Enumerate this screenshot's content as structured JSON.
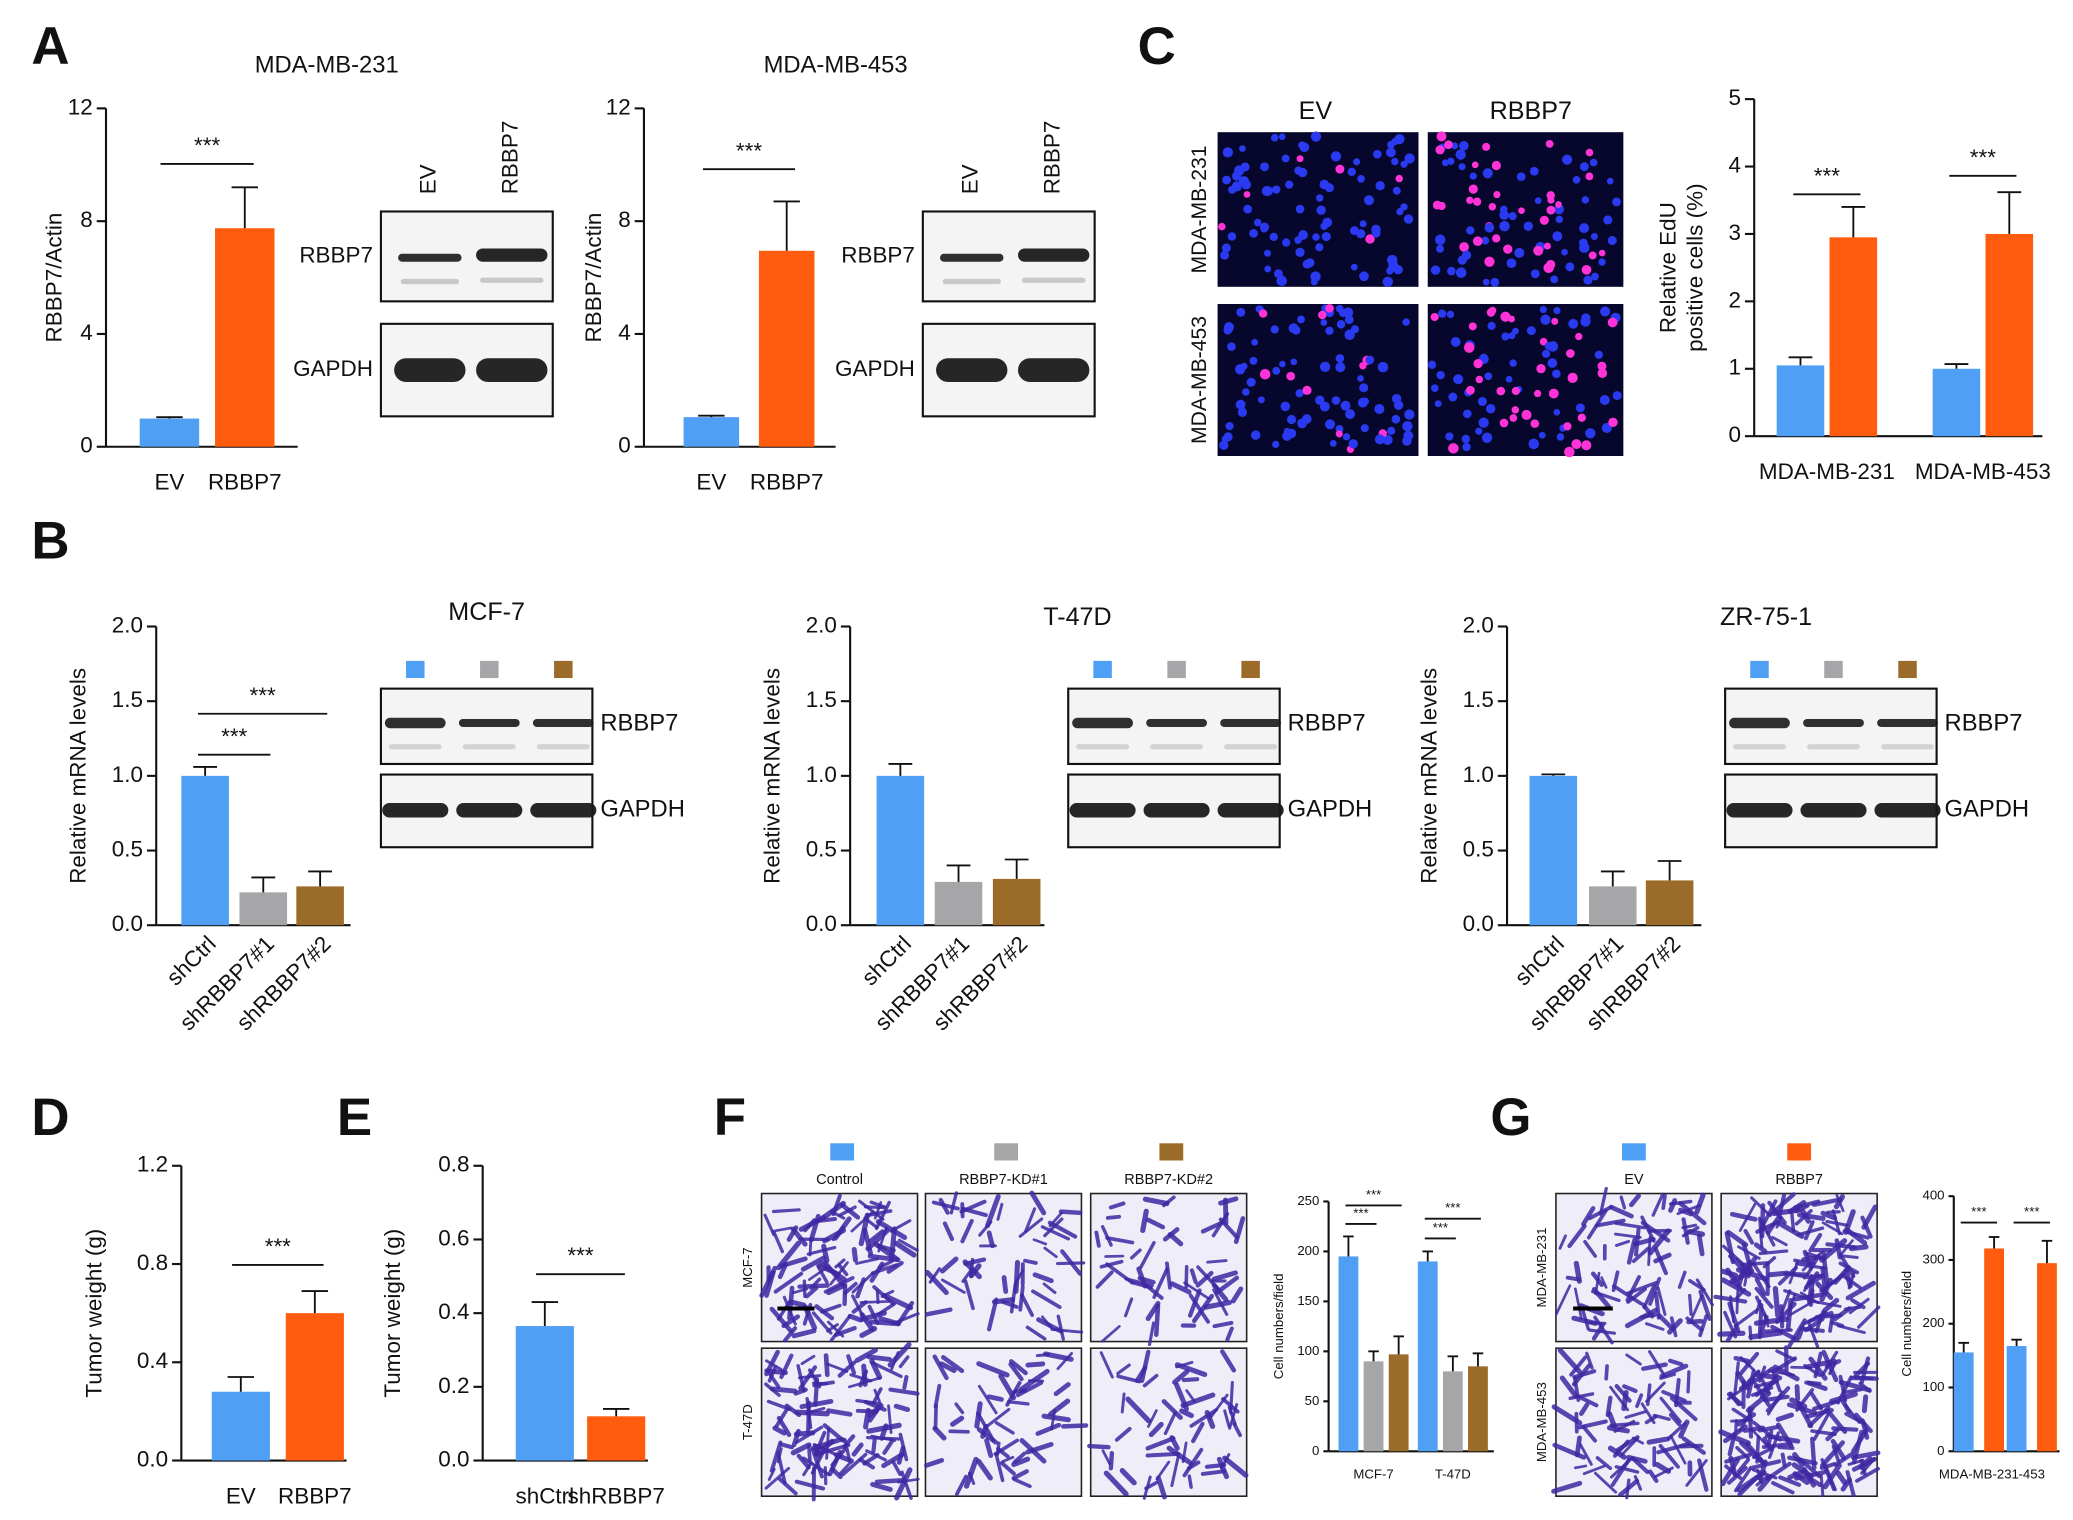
{
  "panel_labels": [
    "A",
    "B",
    "C",
    "D",
    "E",
    "F",
    "G"
  ],
  "blots": [
    {
      "lanes": [
        "EV",
        "RBBP7"
      ],
      "proteins": [
        "RBBP7",
        "GAPDH"
      ]
    },
    {
      "lanes": [
        "EV",
        "RBBP7"
      ],
      "proteins": [
        "RBBP7",
        "GAPDH"
      ]
    },
    {
      "proteins": [
        "RBBP7",
        "GAPDH"
      ]
    },
    {
      "proteins": [
        "RBBP7",
        "GAPDH"
      ]
    },
    {
      "proteins": [
        "RBBP7",
        "GAPDH"
      ]
    }
  ],
  "micrographs": [
    {
      "rows": [
        "MDA-MB-231",
        "MDA-MB-453"
      ]
    },
    {
      "rows": [
        "MCF-7",
        "T-47D"
      ]
    },
    {
      "rows": [
        "MDA-MB-231",
        "MDA-MB-453"
      ]
    }
  ],
  "chart_data": [
    {
      "type": "bar",
      "title": "MDA-MB-231",
      "y_label": "RBBP7/Actin",
      "categories": [
        "EV",
        "RBBP7"
      ],
      "values": [
        1,
        7.75
      ],
      "errors": [
        0.05,
        1.45
      ],
      "colors": [
        "#4f9ff5",
        "#ff5c0f"
      ],
      "ylim": [
        0,
        12
      ],
      "yticks": [
        0,
        4,
        8,
        12
      ],
      "significance": [
        {
          "text": "***",
          "from": "EV",
          "to": "RBBP7"
        }
      ]
    },
    {
      "type": "bar",
      "title": "MDA-MB-453",
      "y_label": "RBBP7/Actin",
      "categories": [
        "EV",
        "RBBP7"
      ],
      "values": [
        1.05,
        6.95
      ],
      "errors": [
        0.05,
        1.75
      ],
      "colors": [
        "#4f9ff5",
        "#ff5c0f"
      ],
      "ylim": [
        0,
        12
      ],
      "yticks": [
        0,
        4,
        8,
        12
      ],
      "significance": [
        {
          "text": "***",
          "from": "EV",
          "to": "RBBP7"
        }
      ]
    },
    {
      "type": "bar",
      "y_label": [
        "Relative EdU",
        "positive cells (%)"
      ],
      "categories": [
        "MDA-MB-231",
        "MDA-MB-453"
      ],
      "series": [
        {
          "name": "EV",
          "color": "#4f9ff5",
          "values": [
            1.05,
            1.0
          ],
          "errors": [
            0.12,
            0.07
          ]
        },
        {
          "name": "RBBP7",
          "color": "#ff5c0f",
          "values": [
            2.95,
            3.0
          ],
          "errors": [
            0.45,
            0.62
          ]
        }
      ],
      "ylim": [
        0,
        5
      ],
      "yticks": [
        0,
        1,
        2,
        3,
        4,
        5
      ],
      "significance": [
        {
          "text": "***",
          "category": "MDA-MB-231",
          "from": "EV",
          "to": "RBBP7"
        },
        {
          "text": "***",
          "category": "MDA-MB-453",
          "from": "EV",
          "to": "RBBP7"
        }
      ]
    },
    {
      "type": "bar",
      "title": "MCF-7",
      "y_label": "Relative mRNA levels",
      "categories": [
        "shCtrl",
        "shRBBP7#1",
        "shRBBP7#2"
      ],
      "values": [
        1.0,
        0.22,
        0.26
      ],
      "errors": [
        0.06,
        0.1,
        0.1
      ],
      "colors": [
        "#4f9ff5",
        "#a6a6a8",
        "#9b6b29"
      ],
      "ylim": [
        0,
        2
      ],
      "yticks": [
        {
          "value": 0,
          "label": "0.0"
        },
        0.5,
        {
          "value": 1,
          "label": "1.0"
        },
        1.5,
        {
          "value": 2,
          "label": "2.0"
        }
      ],
      "significance": [
        {
          "text": "***",
          "from": "shCtrl",
          "to": "shRBBP7#1"
        },
        {
          "text": "***",
          "from": "shCtrl",
          "to": "shRBBP7#2"
        }
      ]
    },
    {
      "type": "bar",
      "title": "T-47D",
      "y_label": "Relative mRNA levels",
      "categories": [
        "shCtrl",
        "shRBBP7#1",
        "shRBBP7#2"
      ],
      "values": [
        1.0,
        0.29,
        0.31
      ],
      "errors": [
        0.08,
        0.11,
        0.13
      ],
      "colors": [
        "#4f9ff5",
        "#a6a6a8",
        "#9b6b29"
      ],
      "ylim": [
        0,
        2
      ],
      "yticks": [
        {
          "value": 0,
          "label": "0.0"
        },
        0.5,
        {
          "value": 1,
          "label": "1.0"
        },
        1.5,
        {
          "value": 2,
          "label": "2.0"
        }
      ]
    },
    {
      "type": "bar",
      "title": "ZR-75-1",
      "y_label": "Relative mRNA levels",
      "categories": [
        "shCtrl",
        "shRBBP7#1",
        "shRBBP7#2"
      ],
      "values": [
        1.0,
        0.26,
        0.3
      ],
      "errors": [
        0.01,
        0.1,
        0.13
      ],
      "colors": [
        "#4f9ff5",
        "#a6a6a8",
        "#9b6b29"
      ],
      "ylim": [
        0,
        2
      ],
      "yticks": [
        {
          "value": 0,
          "label": "0.0"
        },
        0.5,
        {
          "value": 1,
          "label": "1.0"
        },
        1.5,
        {
          "value": 2,
          "label": "2.0"
        }
      ]
    },
    {
      "type": "bar",
      "y_label": "Tumor weight (g)",
      "categories": [
        "EV",
        "RBBP7"
      ],
      "values": [
        0.28,
        0.6
      ],
      "errors": [
        0.06,
        0.09
      ],
      "colors": [
        "#4f9ff5",
        "#ff5c0f"
      ],
      "ylim": [
        0,
        1.2
      ],
      "yticks": [
        {
          "value": 0,
          "label": "0.0"
        },
        0.4,
        0.8,
        1.2
      ],
      "significance": [
        {
          "text": "***",
          "from": "EV",
          "to": "RBBP7"
        }
      ]
    },
    {
      "type": "bar",
      "y_label": "Tumor weight (g)",
      "categories": [
        "shCtrl",
        "shRBBP7"
      ],
      "values": [
        0.365,
        0.12
      ],
      "errors": [
        0.065,
        0.02
      ],
      "colors": [
        "#4f9ff5",
        "#ff5c0f"
      ],
      "ylim": [
        0,
        0.8
      ],
      "yticks": [
        {
          "value": 0,
          "label": "0.0"
        },
        0.2,
        0.4,
        0.6,
        0.8
      ],
      "significance": [
        {
          "text": "***",
          "from": "shCtrl",
          "to": "shRBBP7"
        }
      ]
    },
    {
      "type": "bar",
      "y_label": "Cell numbers/field",
      "categories": [
        "MCF-7",
        "T-47D"
      ],
      "series": [
        {
          "name": "Control",
          "color": "#4f9ff5",
          "values": [
            195,
            190
          ],
          "errors": [
            20,
            10
          ]
        },
        {
          "name": "RBBP7-KD#1",
          "color": "#a6a6a8",
          "values": [
            90,
            80
          ],
          "errors": [
            10,
            15
          ]
        },
        {
          "name": "RBBP7-KD#2",
          "color": "#9b6b29",
          "values": [
            97,
            85
          ],
          "errors": [
            18,
            13
          ]
        }
      ],
      "ylim": [
        0,
        250
      ],
      "yticks": [
        0,
        50,
        100,
        150,
        200,
        250
      ],
      "significance": [
        {
          "text": "***",
          "category": "MCF-7",
          "from": "Control",
          "to": "RBBP7-KD#1"
        },
        {
          "text": "***",
          "category": "MCF-7",
          "from": "Control",
          "to": "RBBP7-KD#2"
        },
        {
          "text": "***",
          "category": "T-47D",
          "from": "Control",
          "to": "RBBP7-KD#1"
        },
        {
          "text": "***",
          "category": "T-47D",
          "from": "Control",
          "to": "RBBP7-KD#2"
        }
      ]
    },
    {
      "type": "bar",
      "y_label": "Cell numbers/field",
      "categories": [
        "MDA-MB-231",
        "-453"
      ],
      "series": [
        {
          "name": "EV",
          "color": "#4f9ff5",
          "values": [
            155,
            165
          ],
          "errors": [
            15,
            10
          ]
        },
        {
          "name": "RBBP7",
          "color": "#ff5c0f",
          "values": [
            318,
            295
          ],
          "errors": [
            18,
            35
          ]
        }
      ],
      "ylim": [
        0,
        400
      ],
      "yticks": [
        0,
        100,
        200,
        300,
        400
      ],
      "significance": [
        {
          "text": "***",
          "category": "MDA-MB-231",
          "from": "EV",
          "to": "RBBP7"
        },
        {
          "text": "***",
          "category": "-453",
          "from": "EV",
          "to": "RBBP7"
        }
      ]
    }
  ]
}
